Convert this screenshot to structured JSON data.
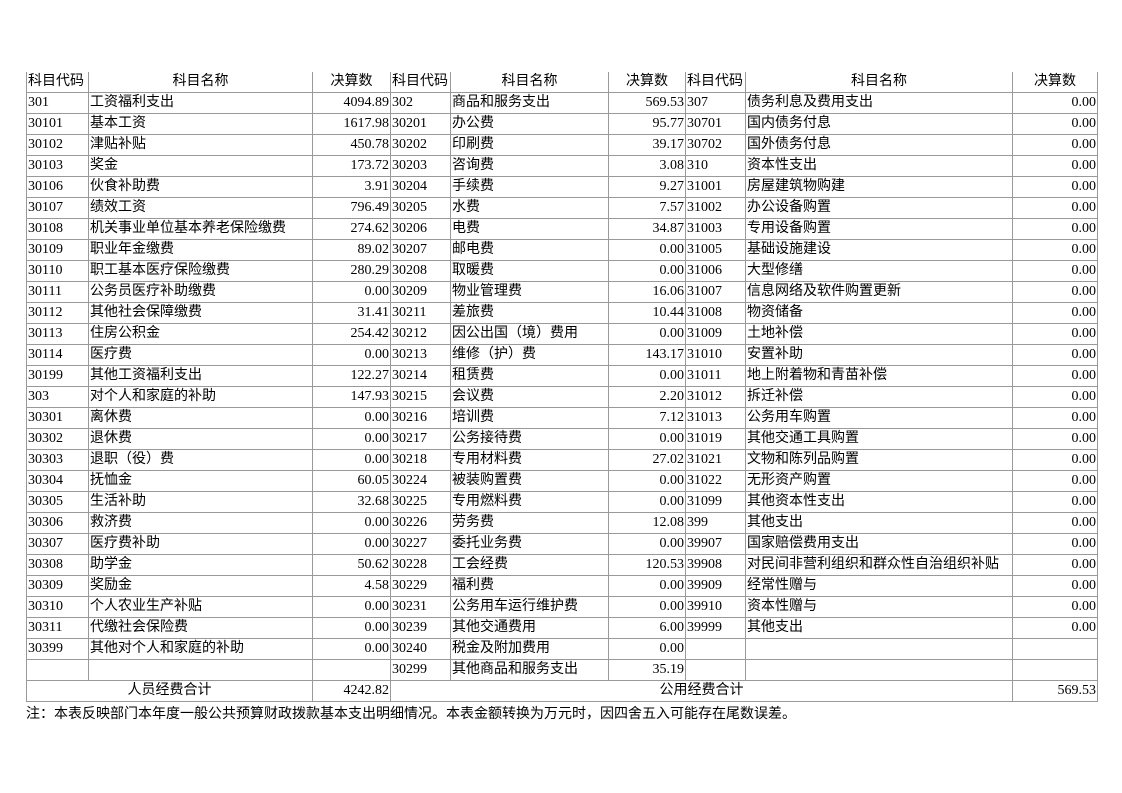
{
  "headers": [
    "科目代码",
    "科目名称",
    "决算数",
    "科目代码",
    "科目名称",
    "决算数",
    "科目代码",
    "科目名称",
    "决算数"
  ],
  "rows": [
    [
      "301",
      "工资福利支出",
      "4094.89",
      "302",
      "商品和服务支出",
      "569.53",
      "307",
      "债务利息及费用支出",
      "0.00"
    ],
    [
      "30101",
      "基本工资",
      "1617.98",
      "30201",
      "办公费",
      "95.77",
      "30701",
      "国内债务付息",
      "0.00"
    ],
    [
      "30102",
      "津贴补贴",
      "450.78",
      "30202",
      "印刷费",
      "39.17",
      "30702",
      "国外债务付息",
      "0.00"
    ],
    [
      "30103",
      "奖金",
      "173.72",
      "30203",
      "咨询费",
      "3.08",
      "310",
      "资本性支出",
      "0.00"
    ],
    [
      "30106",
      "伙食补助费",
      "3.91",
      "30204",
      "手续费",
      "9.27",
      "31001",
      "房屋建筑物购建",
      "0.00"
    ],
    [
      "30107",
      "绩效工资",
      "796.49",
      "30205",
      "水费",
      "7.57",
      "31002",
      "办公设备购置",
      "0.00"
    ],
    [
      "30108",
      "机关事业单位基本养老保险缴费",
      "274.62",
      "30206",
      "电费",
      "34.87",
      "31003",
      "专用设备购置",
      "0.00"
    ],
    [
      "30109",
      "职业年金缴费",
      "89.02",
      "30207",
      "邮电费",
      "0.00",
      "31005",
      "基础设施建设",
      "0.00"
    ],
    [
      "30110",
      "职工基本医疗保险缴费",
      "280.29",
      "30208",
      "取暖费",
      "0.00",
      "31006",
      "大型修缮",
      "0.00"
    ],
    [
      "30111",
      "公务员医疗补助缴费",
      "0.00",
      "30209",
      "物业管理费",
      "16.06",
      "31007",
      "信息网络及软件购置更新",
      "0.00"
    ],
    [
      "30112",
      "其他社会保障缴费",
      "31.41",
      "30211",
      "差旅费",
      "10.44",
      "31008",
      "物资储备",
      "0.00"
    ],
    [
      "30113",
      "住房公积金",
      "254.42",
      "30212",
      "因公出国（境）费用",
      "0.00",
      "31009",
      "土地补偿",
      "0.00"
    ],
    [
      "30114",
      "医疗费",
      "0.00",
      "30213",
      "维修（护）费",
      "143.17",
      "31010",
      "安置补助",
      "0.00"
    ],
    [
      "30199",
      "其他工资福利支出",
      "122.27",
      "30214",
      "租赁费",
      "0.00",
      "31011",
      "地上附着物和青苗补偿",
      "0.00"
    ],
    [
      "303",
      "对个人和家庭的补助",
      "147.93",
      "30215",
      "会议费",
      "2.20",
      "31012",
      "拆迁补偿",
      "0.00"
    ],
    [
      "30301",
      "离休费",
      "0.00",
      "30216",
      "培训费",
      "7.12",
      "31013",
      "公务用车购置",
      "0.00"
    ],
    [
      "30302",
      "退休费",
      "0.00",
      "30217",
      "公务接待费",
      "0.00",
      "31019",
      "其他交通工具购置",
      "0.00"
    ],
    [
      "30303",
      "退职（役）费",
      "0.00",
      "30218",
      "专用材料费",
      "27.02",
      "31021",
      "文物和陈列品购置",
      "0.00"
    ],
    [
      "30304",
      "抚恤金",
      "60.05",
      "30224",
      "被装购置费",
      "0.00",
      "31022",
      "无形资产购置",
      "0.00"
    ],
    [
      "30305",
      "生活补助",
      "32.68",
      "30225",
      "专用燃料费",
      "0.00",
      "31099",
      "其他资本性支出",
      "0.00"
    ],
    [
      "30306",
      "救济费",
      "0.00",
      "30226",
      "劳务费",
      "12.08",
      "399",
      "其他支出",
      "0.00"
    ],
    [
      "30307",
      "医疗费补助",
      "0.00",
      "30227",
      "委托业务费",
      "0.00",
      "39907",
      "国家赔偿费用支出",
      "0.00"
    ],
    [
      "30308",
      "助学金",
      "50.62",
      "30228",
      "工会经费",
      "120.53",
      "39908",
      "对民间非营利组织和群众性自治组织补贴",
      "0.00"
    ],
    [
      "30309",
      "奖励金",
      "4.58",
      "30229",
      "福利费",
      "0.00",
      "39909",
      "经常性赠与",
      "0.00"
    ],
    [
      "30310",
      "个人农业生产补贴",
      "0.00",
      "30231",
      "公务用车运行维护费",
      "0.00",
      "39910",
      "资本性赠与",
      "0.00"
    ],
    [
      "30311",
      "代缴社会保险费",
      "0.00",
      "30239",
      "其他交通费用",
      "6.00",
      "39999",
      "其他支出",
      "0.00"
    ],
    [
      "30399",
      "其他对个人和家庭的补助",
      "0.00",
      "30240",
      "税金及附加费用",
      "0.00",
      "",
      "",
      ""
    ],
    [
      "",
      "",
      "",
      "30299",
      "其他商品和服务支出",
      "35.19",
      "",
      "",
      ""
    ]
  ],
  "totals": {
    "personnel_label": "人员经费合计",
    "personnel_value": "4242.82",
    "public_label": "公用经费合计",
    "public_value": "569.53"
  },
  "note": "注：本表反映部门本年度一般公共预算财政拨款基本支出明细情况。本表金额转换为万元时，因四舍五入可能存在尾数误差。"
}
